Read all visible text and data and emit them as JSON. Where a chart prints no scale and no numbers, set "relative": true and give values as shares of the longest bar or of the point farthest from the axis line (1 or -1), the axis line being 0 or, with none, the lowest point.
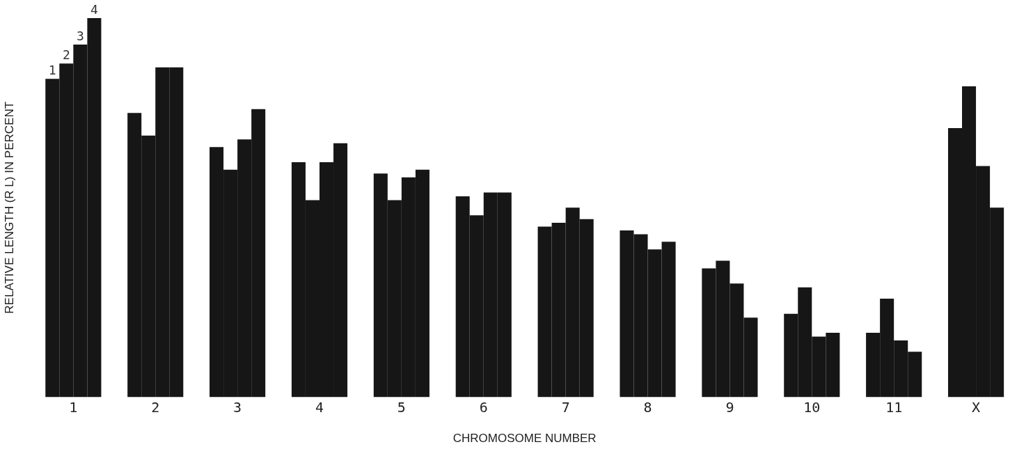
{
  "chart_data": {
    "type": "bar",
    "xlabel": "CHROMOSOME NUMBER",
    "ylabel": "RELATIVE LENGTH (R L) IN PERCENT",
    "relative": true,
    "legend": false,
    "grid": false,
    "categories": [
      "1",
      "2",
      "3",
      "4",
      "5",
      "6",
      "7",
      "8",
      "9",
      "10",
      "11",
      "X"
    ],
    "series": [
      {
        "name": "1",
        "color": "#161616",
        "values": [
          0.84,
          0.75,
          0.66,
          0.62,
          0.59,
          0.53,
          0.45,
          0.44,
          0.34,
          0.22,
          0.17,
          0.71
        ]
      },
      {
        "name": "2",
        "color": "#161616",
        "values": [
          0.88,
          0.69,
          0.6,
          0.52,
          0.52,
          0.48,
          0.46,
          0.43,
          0.36,
          0.29,
          0.26,
          0.82
        ]
      },
      {
        "name": "3",
        "color": "#161616",
        "values": [
          0.93,
          0.87,
          0.68,
          0.62,
          0.58,
          0.54,
          0.5,
          0.39,
          0.3,
          0.16,
          0.15,
          0.61
        ]
      },
      {
        "name": "4",
        "color": "#161616",
        "values": [
          1,
          0.87,
          0.76,
          0.67,
          0.6,
          0.54,
          0.47,
          0.41,
          0.21,
          0.17,
          0.12,
          0.5
        ]
      }
    ]
  }
}
